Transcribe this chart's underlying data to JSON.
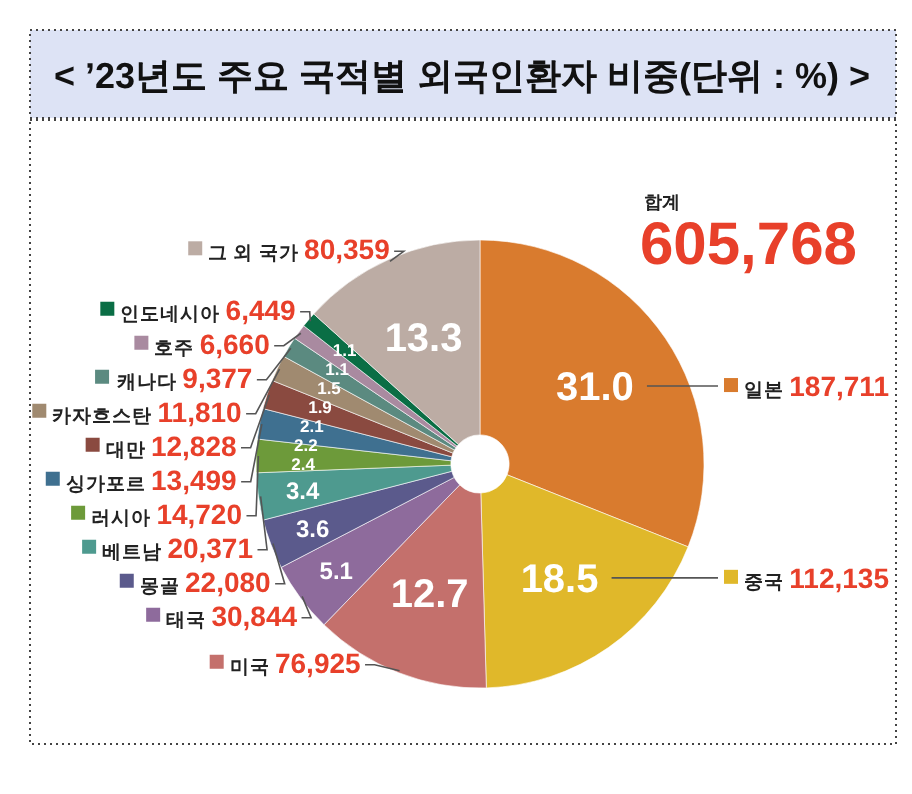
{
  "chart_data": {
    "type": "donut",
    "title": "< ’23년도 주요 국적별 외국인환자 비중(단위 : %) >",
    "categories": [
      "일본",
      "중국",
      "미국",
      "태국",
      "몽골",
      "베트남",
      "러시아",
      "싱가포르",
      "대만",
      "카자흐스탄",
      "캐나다",
      "호주",
      "인도네시아",
      "그 외 국가"
    ],
    "values": [
      31.0,
      18.5,
      12.7,
      5.1,
      3.6,
      3.4,
      2.4,
      2.2,
      2.1,
      1.9,
      1.5,
      1.1,
      1.1,
      13.3
    ],
    "value_labels": [
      "31.0",
      "18.5",
      "12.7",
      "5.1",
      "3.6",
      "3.4",
      "2.4",
      "2.2",
      "2.1",
      "1.9",
      "1.5",
      "1.1",
      "1.1",
      "13.3"
    ],
    "colors": [
      "#d97b2e",
      "#e0b82a",
      "#c4706c",
      "#8e6b9c",
      "#5b5a8c",
      "#4e9a8f",
      "#6d9a3a",
      "#3f7090",
      "#8a4a40",
      "#a08a70",
      "#5b8a80",
      "#a98aa0",
      "#0a6e45",
      "#bcaca4"
    ],
    "legend": "left",
    "annotations": [
      "합계",
      "605,768",
      "187,711",
      "112,135",
      "76,925",
      "30,844",
      "22,080",
      "20,371",
      "14,720",
      "13,499",
      "12,828",
      "11,810",
      "9,377",
      "6,660",
      "6,449",
      "80,359"
    ]
  }
}
